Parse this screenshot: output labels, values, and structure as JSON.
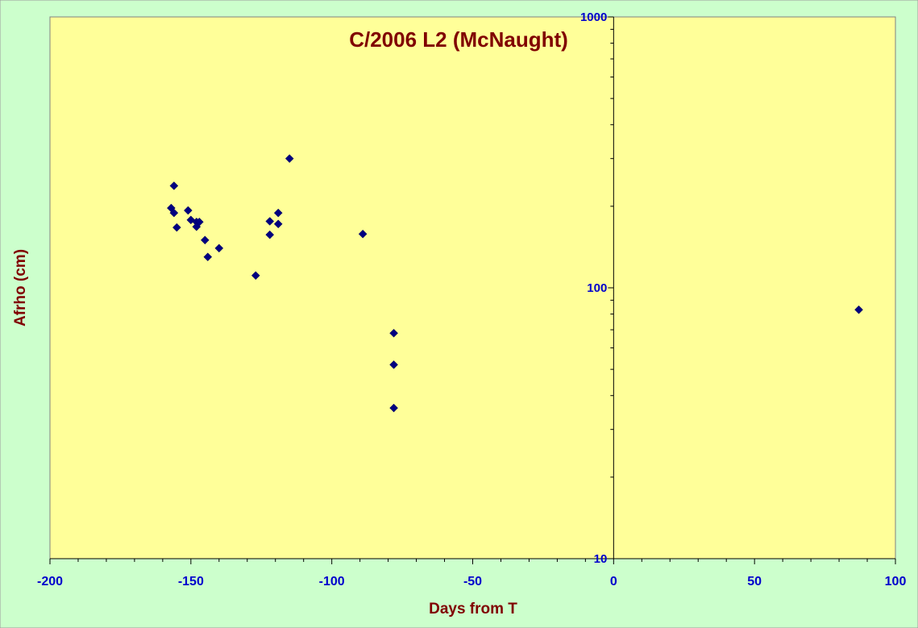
{
  "chart_data": {
    "type": "scatter",
    "title": "C/2006 L2 (McNaught)",
    "xlabel": "Days from T",
    "ylabel": "Afrho (cm)",
    "xlim": [
      -200,
      100
    ],
    "ylim": [
      10,
      1000
    ],
    "yscale": "log",
    "x_ticks": [
      -200,
      -150,
      -100,
      -50,
      0,
      50,
      100
    ],
    "x_tick_labels": [
      "-200",
      "-150",
      "-100",
      "-50",
      "0",
      "50",
      "100"
    ],
    "y_ticks": [
      10,
      100,
      1000
    ],
    "y_tick_labels": [
      "10",
      "100",
      "1000"
    ],
    "y_axis_position": "x=0",
    "grid": false,
    "legend": "none",
    "colors": {
      "background": "#ccffcc",
      "plot_area": "#ffff99",
      "marker": "#000080",
      "title": "#800000",
      "axis_label": "#800000",
      "tick_label": "#0000cc"
    },
    "points": [
      {
        "x": -156,
        "y": 238
      },
      {
        "x": -157,
        "y": 197
      },
      {
        "x": -156,
        "y": 189
      },
      {
        "x": -155,
        "y": 167
      },
      {
        "x": -151,
        "y": 193
      },
      {
        "x": -150,
        "y": 178
      },
      {
        "x": -148,
        "y": 175
      },
      {
        "x": -147,
        "y": 175
      },
      {
        "x": -148,
        "y": 168
      },
      {
        "x": -145,
        "y": 150
      },
      {
        "x": -144,
        "y": 130
      },
      {
        "x": -140,
        "y": 140
      },
      {
        "x": -127,
        "y": 111
      },
      {
        "x": -122,
        "y": 176
      },
      {
        "x": -122,
        "y": 157
      },
      {
        "x": -119,
        "y": 189
      },
      {
        "x": -119,
        "y": 172
      },
      {
        "x": -115,
        "y": 300
      },
      {
        "x": -89,
        "y": 158
      },
      {
        "x": -78,
        "y": 68
      },
      {
        "x": -78,
        "y": 52
      },
      {
        "x": -78,
        "y": 36
      },
      {
        "x": 87,
        "y": 83
      }
    ]
  }
}
